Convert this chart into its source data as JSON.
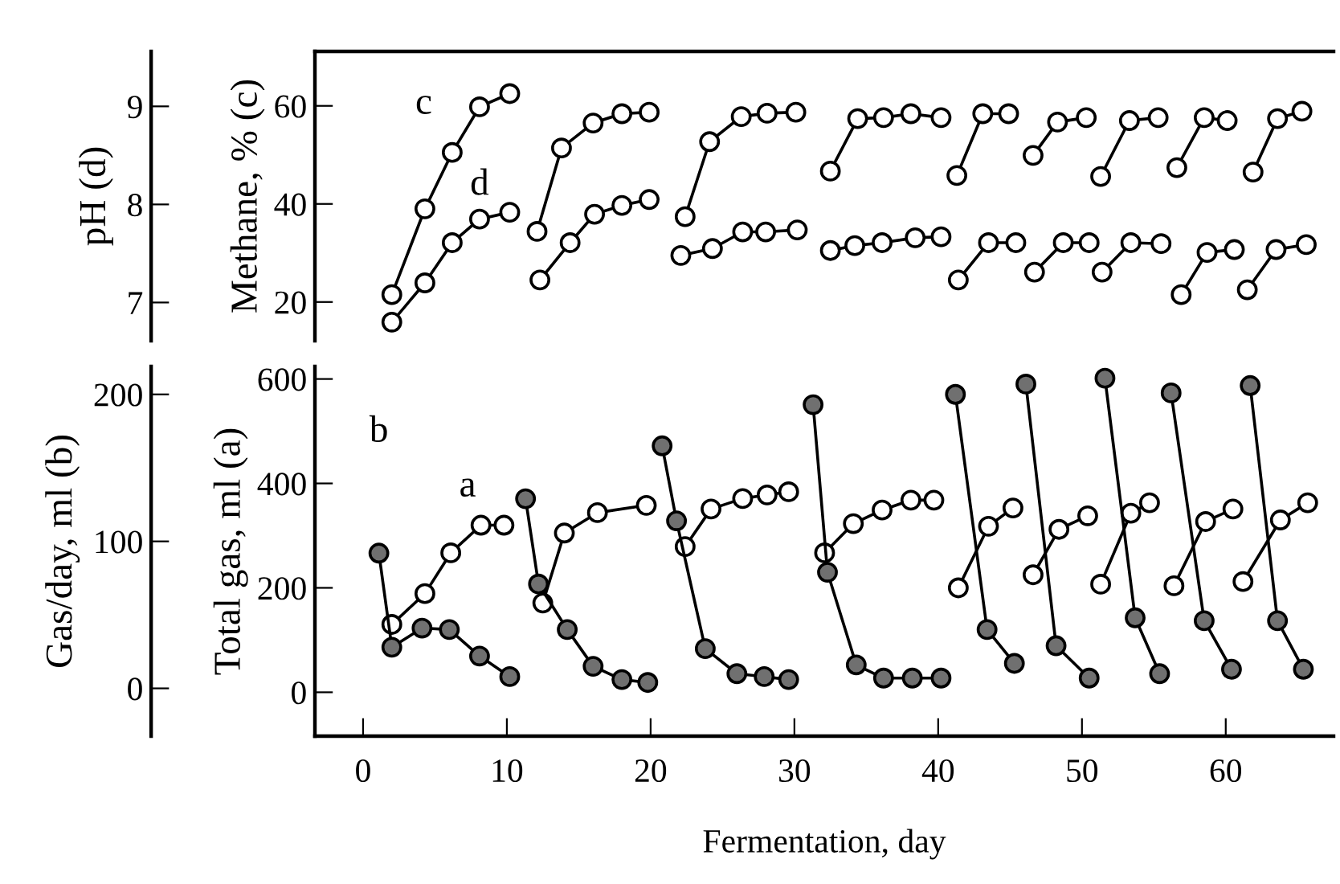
{
  "chart_data": [
    {
      "type": "line",
      "ylabel": "Methane, % (c)",
      "y2label": "pH (d)",
      "xlim": [
        -3.35,
        67.5
      ],
      "xticks": [
        0,
        10,
        20,
        30,
        40,
        50,
        60
      ],
      "ylim": [
        12.1,
        71.1
      ],
      "yticks": [
        20,
        40,
        60
      ],
      "y2lim": [
        6.61,
        9.56
      ],
      "y2ticks": [
        7,
        8,
        9
      ],
      "tick_labels": "y",
      "marker": "circle",
      "grid": false,
      "legend": false,
      "series": [
        {
          "name": "c",
          "color": "#ffffff",
          "x": [
            2.0,
            4.3,
            6.2,
            8.1,
            10.2,
            null,
            12.1,
            13.8,
            16.0,
            18.0,
            19.9,
            null,
            22.4,
            24.1,
            26.3,
            28.1,
            30.1,
            null,
            32.5,
            34.4,
            36.2,
            38.1,
            40.2,
            null,
            41.3,
            43.1,
            44.9,
            null,
            46.6,
            48.3,
            50.3,
            null,
            51.3,
            53.3,
            55.3,
            null,
            56.6,
            58.5,
            60.1,
            null,
            61.9,
            63.6,
            65.3
          ],
          "values": [
            21.5,
            39,
            50.5,
            59.8,
            62.5,
            null,
            34.4,
            51.4,
            56.5,
            58.4,
            58.7,
            null,
            37.4,
            52.7,
            57.8,
            58.5,
            58.7,
            null,
            46.7,
            57.4,
            57.6,
            58.4,
            57.6,
            null,
            45.8,
            58.4,
            58.4,
            null,
            49.9,
            56.7,
            57.6,
            null,
            45.6,
            57.0,
            57.6,
            null,
            47.4,
            57.6,
            57.0,
            null,
            46.5,
            57.4,
            58.9
          ]
        },
        {
          "name": "d",
          "color": "#ffffff",
          "axis": "y2",
          "x": [
            2.0,
            4.3,
            6.2,
            8.1,
            10.2,
            null,
            12.3,
            14.4,
            16.1,
            18.0,
            19.9,
            null,
            22.1,
            24.3,
            26.4,
            28.0,
            30.2,
            null,
            32.5,
            34.2,
            36.1,
            38.4,
            40.2,
            null,
            41.4,
            43.5,
            45.4,
            null,
            46.7,
            48.7,
            50.5,
            null,
            51.4,
            53.4,
            55.5,
            null,
            56.9,
            58.7,
            60.6,
            null,
            61.5,
            63.5,
            65.6
          ],
          "values": [
            6.8,
            7.2,
            7.61,
            7.85,
            7.92,
            null,
            7.23,
            7.61,
            7.9,
            7.99,
            8.05,
            null,
            7.48,
            7.55,
            7.72,
            7.72,
            7.74,
            null,
            7.53,
            7.58,
            7.61,
            7.66,
            7.67,
            null,
            7.23,
            7.61,
            7.61,
            null,
            7.31,
            7.61,
            7.61,
            null,
            7.31,
            7.61,
            7.6,
            null,
            7.08,
            7.51,
            7.54,
            null,
            7.13,
            7.54,
            7.59
          ]
        }
      ]
    },
    {
      "type": "line",
      "xlabel": "Fermentation, day",
      "ylabel": "Total gas, ml (a)",
      "y2label": "Gas/day, ml (b)",
      "xlim": [
        -3.35,
        67.5
      ],
      "xticks": [
        0,
        10,
        20,
        30,
        40,
        50,
        60
      ],
      "ylim": [
        -84,
        624
      ],
      "yticks": [
        0,
        200,
        400,
        600
      ],
      "y2lim": [
        -32.5,
        219
      ],
      "y2ticks": [
        0,
        100,
        200
      ],
      "marker": "circle",
      "grid": false,
      "legend": false,
      "series": [
        {
          "name": "a",
          "color": "#ffffff",
          "x": [
            2.0,
            4.3,
            6.1,
            8.2,
            9.8,
            null,
            12.5,
            14.0,
            16.3,
            19.7,
            null,
            22.4,
            24.2,
            26.4,
            28.1,
            29.6,
            null,
            32.1,
            34.1,
            36.1,
            38.1,
            39.7,
            null,
            41.4,
            43.5,
            45.2,
            null,
            46.6,
            48.4,
            50.4,
            null,
            51.3,
            53.4,
            54.7,
            null,
            56.4,
            58.6,
            60.5,
            null,
            61.2,
            63.8,
            65.7
          ],
          "values": [
            130,
            189,
            267,
            320,
            320,
            null,
            171,
            305,
            344,
            358,
            null,
            279,
            351,
            371,
            378,
            384,
            null,
            267,
            323,
            349,
            368,
            368,
            null,
            200,
            318,
            353,
            null,
            225,
            312,
            338,
            null,
            207,
            343,
            363,
            null,
            204,
            327,
            351,
            null,
            212,
            330,
            363
          ]
        },
        {
          "name": "b",
          "color": "#707070",
          "axis": "y2",
          "x": [
            1.1,
            2.0,
            4.1,
            6.0,
            8.1,
            10.2,
            null,
            11.3,
            12.2,
            14.2,
            16.0,
            18.0,
            19.8,
            null,
            20.8,
            21.8,
            23.8,
            26.0,
            27.9,
            29.6,
            null,
            31.3,
            32.3,
            34.3,
            36.2,
            38.2,
            40.2,
            null,
            41.2,
            43.4,
            45.3,
            null,
            46.1,
            48.2,
            50.5,
            null,
            51.6,
            53.7,
            55.4,
            null,
            56.2,
            58.5,
            60.4,
            null,
            61.7,
            63.6,
            65.4
          ],
          "values": [
            92,
            28,
            41,
            40,
            22,
            8,
            null,
            129,
            71,
            40,
            15,
            6,
            4,
            null,
            165,
            114,
            27,
            10,
            8,
            6,
            null,
            193,
            79,
            16,
            7,
            7,
            7,
            null,
            200,
            40,
            17,
            null,
            207,
            29,
            7,
            null,
            211,
            48,
            10,
            null,
            201,
            46,
            13,
            null,
            206,
            46,
            13
          ]
        }
      ]
    }
  ]
}
